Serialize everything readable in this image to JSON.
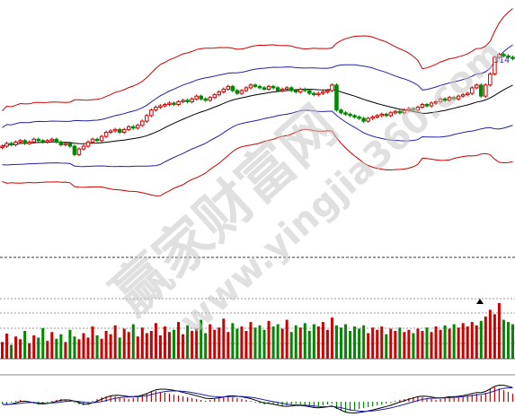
{
  "price_label": "314",
  "watermark": {
    "main": "赢家财富网",
    "url": "www.yingjia360.com"
  },
  "chart_data": [
    {
      "type": "candlestick",
      "panel": "price",
      "overlays": [
        "bollinger_middle",
        "bollinger_inner",
        "bollinger_outer"
      ],
      "grid": false,
      "close": [
        40,
        42,
        41,
        43,
        44,
        42,
        43,
        45,
        44,
        43,
        44,
        45,
        43,
        41,
        42,
        40,
        34,
        38,
        40,
        43,
        45,
        44,
        47,
        50,
        51,
        52,
        50,
        52,
        54,
        53,
        55,
        58,
        62,
        66,
        68,
        69,
        70,
        71,
        70,
        72,
        73,
        72,
        74,
        76,
        74,
        73,
        75,
        77,
        79,
        81,
        83,
        80,
        78,
        80,
        82,
        84,
        83,
        82,
        81,
        83,
        82,
        80,
        81,
        82,
        80,
        79,
        81,
        80,
        78,
        77,
        78,
        79,
        80,
        84,
        66,
        64,
        63,
        62,
        61,
        60,
        58,
        60,
        61,
        62,
        63,
        62,
        64,
        65,
        64,
        66,
        67,
        66,
        68,
        70,
        69,
        71,
        72,
        74,
        73,
        75,
        74,
        76,
        77,
        78,
        82,
        84,
        76,
        84,
        92,
        104,
        106,
        105,
        104,
        103
      ]
    },
    {
      "type": "bar",
      "panel": "volume",
      "colors": [
        "#cc0000",
        "#008800"
      ],
      "values": [
        30,
        45,
        25,
        40,
        35,
        50,
        28,
        42,
        38,
        55,
        32,
        48,
        36,
        44,
        30,
        52,
        40,
        35,
        46,
        38,
        58,
        42,
        36,
        50,
        44,
        60,
        38,
        54,
        48,
        62,
        40,
        56,
        46,
        50,
        64,
        42,
        58,
        48,
        52,
        66,
        44,
        60,
        50,
        54,
        70,
        46,
        62,
        52,
        56,
        72,
        48,
        64,
        54,
        58,
        50,
        66,
        56,
        60,
        52,
        68,
        58,
        62,
        54,
        70,
        48,
        60,
        56,
        64,
        50,
        62,
        58,
        66,
        52,
        74,
        60,
        56,
        62,
        50,
        58,
        54,
        60,
        46,
        56,
        52,
        58,
        44,
        54,
        50,
        56,
        48,
        52,
        46,
        54,
        50,
        56,
        48,
        58,
        52,
        60,
        54,
        62,
        56,
        64,
        58,
        66,
        60,
        68,
        76,
        88,
        80,
        100,
        70,
        66,
        62
      ]
    },
    {
      "type": "bar",
      "panel": "macd",
      "colors": [
        "#cc0000",
        "#008800"
      ],
      "values": [
        -2,
        -3,
        -1,
        1,
        2,
        1,
        -1,
        -2,
        -3,
        -2,
        -1,
        1,
        2,
        3,
        2,
        1,
        -1,
        -3,
        -4,
        -2,
        1,
        3,
        5,
        6,
        7,
        6,
        5,
        4,
        3,
        4,
        5,
        7,
        9,
        11,
        12,
        11,
        10,
        9,
        8,
        7,
        6,
        5,
        4,
        3,
        2,
        1,
        2,
        3,
        4,
        5,
        6,
        5,
        4,
        3,
        2,
        1,
        -1,
        -2,
        -3,
        -2,
        -3,
        -4,
        -5,
        -4,
        -3,
        -2,
        -3,
        -4,
        -5,
        -6,
        -5,
        -4,
        -3,
        -2,
        -8,
        -10,
        -11,
        -10,
        -9,
        -8,
        -7,
        -6,
        -5,
        -4,
        -3,
        -2,
        -1,
        1,
        2,
        3,
        4,
        5,
        6,
        5,
        4,
        3,
        2,
        3,
        4,
        5,
        4,
        5,
        6,
        7,
        8,
        9,
        7,
        10,
        14,
        16,
        15,
        13,
        11,
        9
      ]
    }
  ]
}
